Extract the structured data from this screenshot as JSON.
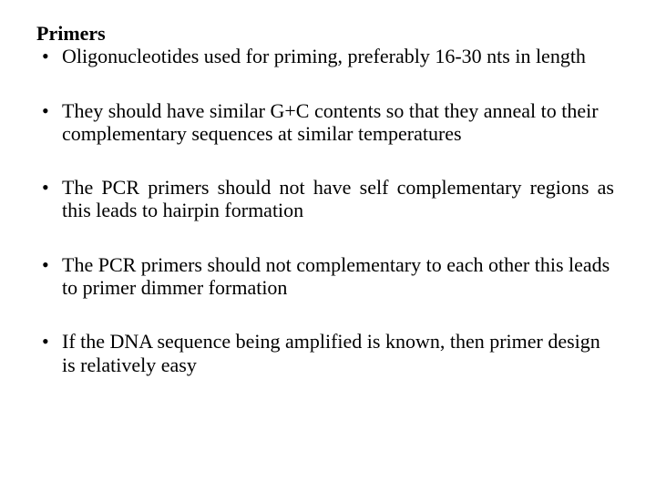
{
  "slide": {
    "heading": "Primers",
    "bullets": [
      {
        "text": "Oligonucleotides used for priming, preferably 16-30 nts in length",
        "justify": false
      },
      {
        "text": "They should have similar G+C contents so that they anneal to their complementary sequences at similar temperatures",
        "justify": false
      },
      {
        "text": "The PCR primers should not have self complementary regions as this leads to hairpin formation",
        "justify": true
      },
      {
        "text": "The PCR primers should not complementary to each other this leads to primer dimmer formation",
        "justify": false
      },
      {
        "text": "If the DNA sequence being amplified is known, then primer design is relatively easy",
        "justify": false
      }
    ],
    "text_color": "#000000",
    "background_color": "#ffffff",
    "font_family": "Times New Roman",
    "font_size_pt": 16
  }
}
